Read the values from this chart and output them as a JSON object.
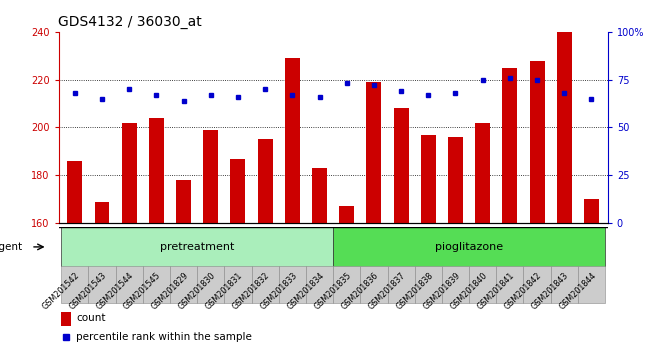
{
  "title": "GDS4132 / 36030_at",
  "samples": [
    "GSM201542",
    "GSM201543",
    "GSM201544",
    "GSM201545",
    "GSM201829",
    "GSM201830",
    "GSM201831",
    "GSM201832",
    "GSM201833",
    "GSM201834",
    "GSM201835",
    "GSM201836",
    "GSM201837",
    "GSM201838",
    "GSM201839",
    "GSM201840",
    "GSM201841",
    "GSM201842",
    "GSM201843",
    "GSM201844"
  ],
  "counts": [
    186,
    169,
    202,
    204,
    178,
    199,
    187,
    195,
    229,
    183,
    167,
    219,
    208,
    197,
    196,
    202,
    225,
    228,
    240,
    170
  ],
  "percentiles": [
    68,
    65,
    70,
    67,
    64,
    67,
    66,
    70,
    67,
    66,
    73,
    72,
    69,
    67,
    68,
    75,
    76,
    75,
    68,
    65
  ],
  "bar_color": "#cc0000",
  "dot_color": "#0000cc",
  "ylim_left": [
    160,
    240
  ],
  "ylim_right": [
    0,
    100
  ],
  "yticks_left": [
    160,
    180,
    200,
    220,
    240
  ],
  "yticks_right": [
    0,
    25,
    50,
    75,
    100
  ],
  "yticklabels_right": [
    "0",
    "25",
    "50",
    "75",
    "100%"
  ],
  "pretreatment_count": 10,
  "pioglitazone_count": 10,
  "group_label_pretreatment": "pretreatment",
  "group_label_pioglitazone": "pioglitazone",
  "agent_label": "agent",
  "legend_count": "count",
  "legend_percentile": "percentile rank within the sample",
  "bg_pretreatment": "#aaeebb",
  "bg_pioglitazone": "#55dd55",
  "grid_color": "#000000",
  "title_fontsize": 10,
  "tick_fontsize": 7,
  "bar_width": 0.55
}
